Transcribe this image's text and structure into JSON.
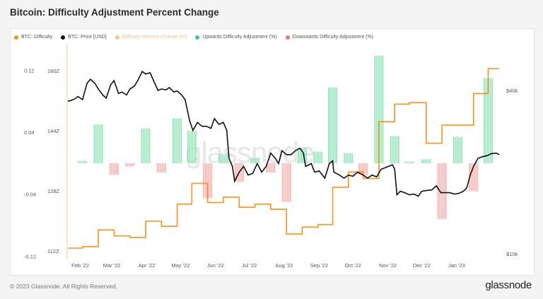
{
  "title": "Bitcoin: Difficulty Adjustment Percent Change",
  "footer": {
    "copyright": "© 2023 Glassnode. All Rights Reserved.",
    "brand": "glassnode"
  },
  "watermark": "glassnode",
  "legend": [
    {
      "label": "BTC: Difficulty",
      "color": "#f7931a",
      "muted": false
    },
    {
      "label": "BTC: Price [USD]",
      "color": "#111111",
      "muted": false
    },
    {
      "label": "Difficulty Percent Change (%)",
      "color": "#f7931a",
      "muted": true
    },
    {
      "label": "Upwards Difficulty Adjustment (%)",
      "color": "#3ccf84",
      "muted": false
    },
    {
      "label": "Downwards Difficulty Adjustment (%)",
      "color": "#f2776f",
      "muted": false
    }
  ],
  "colors": {
    "difficulty": "#f7931a",
    "price": "#111111",
    "up": "#3ccf84",
    "down": "#f2776f",
    "tick": "#555555"
  },
  "chart_data": {
    "type": "bar",
    "title": "Bitcoin: Difficulty Adjustment Percent Change",
    "x_tick_labels": [
      "Feb '22",
      "Mar '22",
      "Apr '22",
      "May '22",
      "Jun '22",
      "Jul '22",
      "Aug '22",
      "Sep '22",
      "Oct '22",
      "Nov '22",
      "Dec '22",
      "Jan '23"
    ],
    "y_left_pct": {
      "ticks": [
        "0.12",
        "0.04",
        "-0.04",
        "-0.12"
      ],
      "range": [
        -0.12,
        0.15
      ]
    },
    "y_left_difficulty": {
      "ticks": [
        "160Z",
        "144Z",
        "128Z",
        "112Z"
      ]
    },
    "y_right_price": {
      "ticks": [
        "$40k",
        "$10k"
      ],
      "scale": "log"
    },
    "adjustments": [
      {
        "date": "2022-02-03",
        "pct": 0.003
      },
      {
        "date": "2022-02-17",
        "pct": 0.05
      },
      {
        "date": "2022-03-03",
        "pct": -0.015
      },
      {
        "date": "2022-03-17",
        "pct": -0.004
      },
      {
        "date": "2022-03-31",
        "pct": 0.045
      },
      {
        "date": "2022-04-14",
        "pct": -0.012
      },
      {
        "date": "2022-04-28",
        "pct": 0.058
      },
      {
        "date": "2022-05-11",
        "pct": 0.042
      },
      {
        "date": "2022-05-25",
        "pct": -0.045
      },
      {
        "date": "2022-06-08",
        "pct": 0.012
      },
      {
        "date": "2022-06-22",
        "pct": -0.024
      },
      {
        "date": "2022-07-06",
        "pct": 0.007
      },
      {
        "date": "2022-07-20",
        "pct": -0.012
      },
      {
        "date": "2022-08-03",
        "pct": -0.05
      },
      {
        "date": "2022-08-17",
        "pct": 0.02
      },
      {
        "date": "2022-08-31",
        "pct": 0.015
      },
      {
        "date": "2022-09-13",
        "pct": 0.098
      },
      {
        "date": "2022-09-27",
        "pct": 0.013
      },
      {
        "date": "2022-10-10",
        "pct": -0.015
      },
      {
        "date": "2022-10-24",
        "pct": 0.139
      },
      {
        "date": "2022-11-07",
        "pct": 0.035
      },
      {
        "date": "2022-11-20",
        "pct": 0.002
      },
      {
        "date": "2022-12-05",
        "pct": 0.005
      },
      {
        "date": "2022-12-19",
        "pct": -0.072
      },
      {
        "date": "2023-01-02",
        "pct": 0.034
      },
      {
        "date": "2023-01-16",
        "pct": -0.036
      },
      {
        "date": "2023-01-29",
        "pct": 0.11
      }
    ],
    "difficulty_series_T": [
      [
        "2022-01-21",
        26.69
      ],
      [
        "2022-02-03",
        26.8
      ],
      [
        "2022-02-17",
        27.97
      ],
      [
        "2022-03-03",
        27.55
      ],
      [
        "2022-03-17",
        27.44
      ],
      [
        "2022-03-31",
        28.59
      ],
      [
        "2022-04-14",
        28.23
      ],
      [
        "2022-04-28",
        29.79
      ],
      [
        "2022-05-11",
        31.25
      ],
      [
        "2022-05-25",
        29.9
      ],
      [
        "2022-06-08",
        30.28
      ],
      [
        "2022-06-22",
        29.57
      ],
      [
        "2022-07-06",
        29.79
      ],
      [
        "2022-07-20",
        29.43
      ],
      [
        "2022-08-03",
        27.69
      ],
      [
        "2022-08-17",
        28.17
      ],
      [
        "2022-08-31",
        28.35
      ],
      [
        "2022-09-13",
        30.98
      ],
      [
        "2022-09-27",
        32.05
      ],
      [
        "2022-10-10",
        31.6
      ],
      [
        "2022-10-24",
        35.61
      ],
      [
        "2022-11-07",
        36.84
      ],
      [
        "2022-11-20",
        36.95
      ],
      [
        "2022-12-05",
        34.09
      ],
      [
        "2022-12-19",
        35.36
      ],
      [
        "2023-01-02",
        35.36
      ],
      [
        "2023-01-16",
        37.59
      ],
      [
        "2023-01-29",
        39.35
      ],
      [
        "2023-02-08",
        39.35
      ]
    ],
    "price_series_usd": [
      [
        "2022-01-21",
        36500
      ],
      [
        "2022-01-24",
        36800
      ],
      [
        "2022-01-27",
        37200
      ],
      [
        "2022-01-30",
        38000
      ],
      [
        "2022-02-03",
        37000
      ],
      [
        "2022-02-07",
        42500
      ],
      [
        "2022-02-10",
        44000
      ],
      [
        "2022-02-14",
        42500
      ],
      [
        "2022-02-17",
        40500
      ],
      [
        "2022-02-21",
        38500
      ],
      [
        "2022-02-24",
        37500
      ],
      [
        "2022-02-28",
        42000
      ],
      [
        "2022-03-03",
        43500
      ],
      [
        "2022-03-07",
        39000
      ],
      [
        "2022-03-10",
        39500
      ],
      [
        "2022-03-14",
        38500
      ],
      [
        "2022-03-17",
        40500
      ],
      [
        "2022-03-21",
        41500
      ],
      [
        "2022-03-24",
        43500
      ],
      [
        "2022-03-28",
        47000
      ],
      [
        "2022-03-31",
        46000
      ],
      [
        "2022-04-04",
        46500
      ],
      [
        "2022-04-07",
        43500
      ],
      [
        "2022-04-11",
        40000
      ],
      [
        "2022-04-14",
        40500
      ],
      [
        "2022-04-18",
        40200
      ],
      [
        "2022-04-21",
        41000
      ],
      [
        "2022-04-25",
        39500
      ],
      [
        "2022-04-28",
        39800
      ],
      [
        "2022-05-02",
        38500
      ],
      [
        "2022-05-05",
        37000
      ],
      [
        "2022-05-09",
        31000
      ],
      [
        "2022-05-12",
        28500
      ],
      [
        "2022-05-16",
        30500
      ],
      [
        "2022-05-20",
        29500
      ],
      [
        "2022-05-24",
        29500
      ],
      [
        "2022-05-28",
        29000
      ],
      [
        "2022-05-31",
        31500
      ],
      [
        "2022-06-04",
        30000
      ],
      [
        "2022-06-08",
        30500
      ],
      [
        "2022-06-11",
        28500
      ],
      [
        "2022-06-13",
        22500
      ],
      [
        "2022-06-16",
        21000
      ],
      [
        "2022-06-18",
        18500
      ],
      [
        "2022-06-22",
        20000
      ],
      [
        "2022-06-26",
        21000
      ],
      [
        "2022-06-30",
        19500
      ],
      [
        "2022-07-04",
        19800
      ],
      [
        "2022-07-08",
        21500
      ],
      [
        "2022-07-12",
        20000
      ],
      [
        "2022-07-16",
        21000
      ],
      [
        "2022-07-20",
        23500
      ],
      [
        "2022-07-24",
        22500
      ],
      [
        "2022-07-27",
        21500
      ],
      [
        "2022-07-30",
        24000
      ],
      [
        "2022-08-03",
        23200
      ],
      [
        "2022-08-07",
        23200
      ],
      [
        "2022-08-11",
        24000
      ],
      [
        "2022-08-15",
        24500
      ],
      [
        "2022-08-18",
        23500
      ],
      [
        "2022-08-20",
        21000
      ],
      [
        "2022-08-25",
        21500
      ],
      [
        "2022-08-28",
        20000
      ],
      [
        "2022-09-01",
        20200
      ],
      [
        "2022-09-06",
        19000
      ],
      [
        "2022-09-10",
        21500
      ],
      [
        "2022-09-13",
        22000
      ],
      [
        "2022-09-14",
        20000
      ],
      [
        "2022-09-19",
        19500
      ],
      [
        "2022-09-23",
        19000
      ],
      [
        "2022-09-27",
        19500
      ],
      [
        "2022-10-01",
        19300
      ],
      [
        "2022-10-05",
        20000
      ],
      [
        "2022-10-10",
        19500
      ],
      [
        "2022-10-14",
        19000
      ],
      [
        "2022-10-18",
        19500
      ],
      [
        "2022-10-22",
        19200
      ],
      [
        "2022-10-26",
        20500
      ],
      [
        "2022-10-30",
        20800
      ],
      [
        "2022-11-05",
        21300
      ],
      [
        "2022-11-07",
        20500
      ],
      [
        "2022-11-09",
        16500
      ],
      [
        "2022-11-12",
        17000
      ],
      [
        "2022-11-16",
        16800
      ],
      [
        "2022-11-20",
        16500
      ],
      [
        "2022-11-24",
        16600
      ],
      [
        "2022-11-28",
        16300
      ],
      [
        "2022-12-01",
        17000
      ],
      [
        "2022-12-05",
        17100
      ],
      [
        "2022-12-10",
        17200
      ],
      [
        "2022-12-14",
        17800
      ],
      [
        "2022-12-18",
        16800
      ],
      [
        "2022-12-22",
        16800
      ],
      [
        "2022-12-26",
        16800
      ],
      [
        "2022-12-30",
        16600
      ],
      [
        "2023-01-03",
        16700
      ],
      [
        "2023-01-07",
        17000
      ],
      [
        "2023-01-10",
        17500
      ],
      [
        "2023-01-13",
        19500
      ],
      [
        "2023-01-16",
        21000
      ],
      [
        "2023-01-20",
        22500
      ],
      [
        "2023-01-24",
        22800
      ],
      [
        "2023-01-28",
        23000
      ],
      [
        "2023-02-01",
        23400
      ],
      [
        "2023-02-05",
        23500
      ],
      [
        "2023-02-08",
        23200
      ]
    ],
    "grid": false,
    "legend_position": "top-left"
  }
}
